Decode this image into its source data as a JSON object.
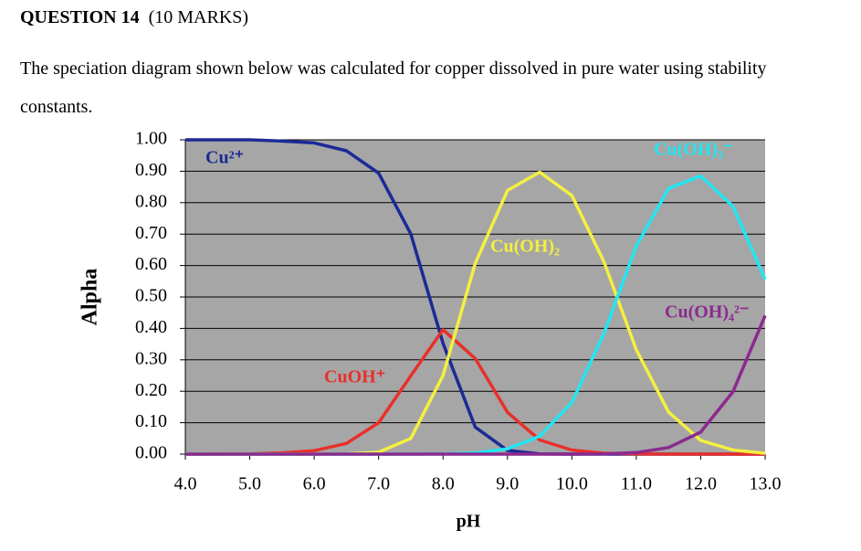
{
  "header": {
    "question": "QUESTION 14",
    "marks": "(10 MARKS)"
  },
  "text": "The speciation diagram shown below was calculated for copper dissolved in pure water using stability constants.",
  "chart_data": {
    "type": "line",
    "xlabel": "pH",
    "ylabel": "Alpha",
    "x": [
      4,
      4.5,
      5,
      5.5,
      6,
      6.5,
      7,
      7.5,
      8,
      8.5,
      9,
      9.5,
      10,
      10.5,
      11,
      11.5,
      12,
      12.5,
      13
    ],
    "series": [
      {
        "name": "Cu²⁺",
        "color": "#1b2a96",
        "values": [
          1.0,
          1.0,
          1.0,
          0.996,
          0.99,
          0.965,
          0.894,
          0.701,
          0.353,
          0.086,
          0.012,
          0.001,
          0,
          0,
          0,
          0,
          0,
          0,
          0
        ]
      },
      {
        "name": "CuOH⁺",
        "color": "#e8302a",
        "values": [
          0.0001,
          0.0004,
          0.001,
          0.004,
          0.011,
          0.034,
          0.1,
          0.249,
          0.396,
          0.304,
          0.133,
          0.045,
          0.013,
          0.003,
          0.001,
          0,
          0,
          0,
          0
        ]
      },
      {
        "name": "Cu(OH)₂",
        "color": "#f4f040",
        "values": [
          0,
          0,
          0,
          0,
          0,
          0.001,
          0.006,
          0.05,
          0.25,
          0.607,
          0.839,
          0.897,
          0.823,
          0.611,
          0.332,
          0.134,
          0.044,
          0.013,
          0.003
        ]
      },
      {
        "name": "Cu(OH)₃⁻",
        "color": "#22e6f2",
        "values": [
          0,
          0,
          0,
          0,
          0,
          0,
          0,
          0,
          0.0005,
          0.004,
          0.017,
          0.057,
          0.164,
          0.385,
          0.662,
          0.845,
          0.885,
          0.789,
          0.556
        ]
      },
      {
        "name": "Cu(OH)₄²⁻",
        "color": "#8b2a8e",
        "values": [
          0,
          0,
          0,
          0,
          0,
          0,
          0,
          0,
          0,
          0,
          0,
          0,
          0,
          0.001,
          0.005,
          0.021,
          0.07,
          0.198,
          0.441
        ]
      }
    ],
    "xlim": [
      4,
      13
    ],
    "ylim": [
      0,
      1
    ],
    "xticks": [
      {
        "value": 4,
        "label": "4.0"
      },
      {
        "value": 5,
        "label": "5.0"
      },
      {
        "value": 6,
        "label": "6.0"
      },
      {
        "value": 7,
        "label": "7.0"
      },
      {
        "value": 8,
        "label": "8.0"
      },
      {
        "value": 9,
        "label": "9.0"
      },
      {
        "value": 10,
        "label": "10.0"
      },
      {
        "value": 11,
        "label": "11.0"
      },
      {
        "value": 12,
        "label": "12.0"
      },
      {
        "value": 13,
        "label": "13.0"
      }
    ],
    "yticks": [
      {
        "value": 0,
        "label": "0.00"
      },
      {
        "value": 0.1,
        "label": "0.10"
      },
      {
        "value": 0.2,
        "label": "0.20"
      },
      {
        "value": 0.3,
        "label": "0.30"
      },
      {
        "value": 0.4,
        "label": "0.40"
      },
      {
        "value": 0.5,
        "label": "0.50"
      },
      {
        "value": 0.6,
        "label": "0.60"
      },
      {
        "value": 0.7,
        "label": "0.70"
      },
      {
        "value": 0.8,
        "label": "0.80"
      },
      {
        "value": 0.9,
        "label": "0.90"
      },
      {
        "value": 1,
        "label": "1.00"
      }
    ],
    "grid": true
  }
}
